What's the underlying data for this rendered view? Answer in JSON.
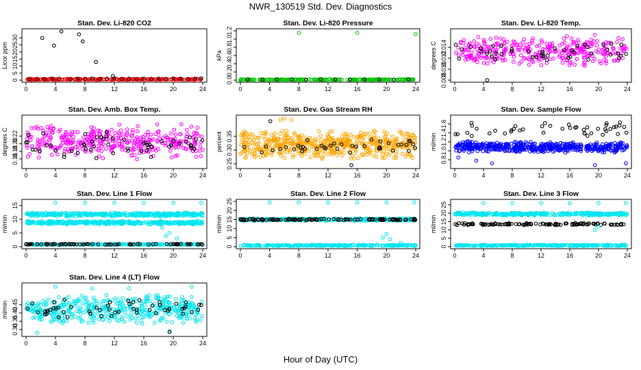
{
  "title": "NWR_130519  Std. Dev. Diagnostics",
  "xlabel": "Hour of Day (UTC)",
  "colors": {
    "black": "#000000",
    "red": "#ff0000",
    "green": "#00c800",
    "magenta": "#ff00ff",
    "orange": "#ffa500",
    "blue": "#0000ff",
    "cyan": "#00e5ee"
  },
  "chart_data": [
    {
      "type": "scatter",
      "title": "Stan. Dev. Li-820 CO2",
      "ylabel": "Licor ppm",
      "xlim": [
        0,
        24
      ],
      "ylim": [
        0,
        35
      ],
      "xticks": [
        "0",
        "4",
        "8",
        "12",
        "16",
        "20",
        "24"
      ],
      "yticks": [
        "0",
        "5",
        "10",
        "15",
        "20",
        "25",
        "30"
      ],
      "series": [
        {
          "color": "red",
          "mode": "band",
          "low": 0.2,
          "high": 1.0,
          "count": 220
        },
        {
          "color": "black",
          "points": [
            [
              0.5,
              0.8
            ],
            [
              1.5,
              0.9
            ],
            [
              2.5,
              0.8
            ],
            [
              3.5,
              1.0
            ],
            [
              4.5,
              0.9
            ],
            [
              6,
              0.8
            ],
            [
              7,
              1.0
            ],
            [
              8,
              0.9
            ],
            [
              9,
              1.1
            ],
            [
              10,
              0.9
            ],
            [
              11,
              1.0
            ],
            [
              12,
              1.2
            ],
            [
              13,
              0.9
            ],
            [
              14,
              1.0
            ],
            [
              15,
              0.8
            ],
            [
              16,
              1.1
            ],
            [
              17,
              0.9
            ],
            [
              18,
              1.0
            ],
            [
              19,
              0.9
            ],
            [
              20,
              1.2
            ],
            [
              21,
              1.0
            ],
            [
              22,
              0.9
            ],
            [
              23,
              1.1
            ],
            [
              23.8,
              1.3
            ],
            [
              2.2,
              30
            ],
            [
              3.8,
              24.5
            ],
            [
              4.8,
              34.5
            ],
            [
              7.2,
              32.5
            ],
            [
              7.7,
              27.5
            ],
            [
              9.5,
              13
            ],
            [
              11.8,
              3
            ]
          ]
        }
      ]
    },
    {
      "type": "scatter",
      "title": "Stan. Dev. Li-820 Pressure",
      "ylabel": "kPa",
      "xlim": [
        0,
        24
      ],
      "ylim": [
        0,
        1.2
      ],
      "xticks": [
        "0",
        "4",
        "8",
        "12",
        "16",
        "20",
        "24"
      ],
      "yticks": [
        "0.0",
        "0.2",
        "0.4",
        "0.6",
        "0.8",
        "1.0",
        "1.2"
      ],
      "series": [
        {
          "color": "green",
          "mode": "band",
          "low": 0.005,
          "high": 0.025,
          "count": 200
        },
        {
          "color": "black",
          "points": [
            [
              1,
              0.015
            ],
            [
              3,
              0.01
            ],
            [
              5,
              0.02
            ],
            [
              7,
              0.015
            ],
            [
              9,
              0.01
            ],
            [
              11,
              0.02
            ],
            [
              13,
              0.015
            ],
            [
              15,
              0.01
            ],
            [
              17,
              0.02
            ],
            [
              19,
              0.015
            ],
            [
              21,
              0.01
            ],
            [
              23,
              0.02
            ]
          ]
        },
        {
          "color": "green",
          "points": [
            [
              0,
              0.0
            ],
            [
              8,
              1.15
            ],
            [
              16,
              1.15
            ],
            [
              24,
              1.12
            ]
          ]
        }
      ]
    },
    {
      "type": "scatter",
      "title": "Stan. Dev. Li-820 Temp.",
      "ylabel": "degrees C",
      "xlim": [
        0,
        24
      ],
      "ylim": [
        0.008,
        0.017
      ],
      "xticks": [
        "0",
        "4",
        "8",
        "12",
        "16",
        "20",
        "24"
      ],
      "yticks": [
        "0.008",
        "0.010",
        "0.012",
        "0.014"
      ],
      "series": [
        {
          "color": "magenta",
          "mode": "band",
          "low": 0.0105,
          "high": 0.0165,
          "count": 330
        },
        {
          "color": "black",
          "mode": "band",
          "low": 0.011,
          "high": 0.0155,
          "count": 45
        },
        {
          "color": "black",
          "points": [
            [
              4.5,
              0.008
            ]
          ]
        }
      ]
    },
    {
      "type": "scatter",
      "title": "Stan. Dev. Amb. Box Temp.",
      "ylabel": "degrees C",
      "xlim": [
        0,
        24
      ],
      "ylim": [
        0.14,
        0.27
      ],
      "xticks": [
        "0",
        "4",
        "8",
        "12",
        "16",
        "20",
        "24"
      ],
      "yticks": [
        "0.16",
        "0.18",
        "0.20",
        "0.22"
      ],
      "series": [
        {
          "color": "magenta",
          "mode": "band",
          "low": 0.155,
          "high": 0.255,
          "count": 360
        },
        {
          "color": "black",
          "mode": "band",
          "low": 0.16,
          "high": 0.24,
          "count": 55
        }
      ]
    },
    {
      "type": "scatter",
      "title": "Stan. Dev. Gas Stream RH",
      "ylabel": "percent",
      "xlim": [
        0,
        24
      ],
      "ylim": [
        0.24,
        0.42
      ],
      "xticks": [
        "0",
        "4",
        "8",
        "12",
        "16",
        "20",
        "24"
      ],
      "yticks": [
        "0.25",
        "0.30",
        "0.35"
      ],
      "series": [
        {
          "color": "orange",
          "mode": "band",
          "low": 0.265,
          "high": 0.375,
          "count": 520
        },
        {
          "color": "black",
          "mode": "band",
          "low": 0.28,
          "high": 0.34,
          "count": 40
        },
        {
          "color": "orange",
          "points": [
            [
              5.5,
              0.41
            ],
            [
              6,
              0.415
            ],
            [
              7,
              0.41
            ]
          ]
        },
        {
          "color": "black",
          "points": [
            [
              4.1,
              0.405
            ],
            [
              15.2,
              0.245
            ]
          ]
        }
      ]
    },
    {
      "type": "scatter",
      "title": "Stan. Dev. Sample Flow",
      "ylabel": "ml/min",
      "xlim": [
        0,
        24
      ],
      "ylim": [
        0.65,
        1.75
      ],
      "xticks": [
        "0",
        "4",
        "8",
        "12",
        "16",
        "20",
        "24"
      ],
      "yticks": [
        "0.8",
        "1.0",
        "1.2",
        "1.4",
        "1.6"
      ],
      "series": [
        {
          "color": "blue",
          "mode": "band",
          "low": 0.95,
          "high": 1.22,
          "count": 460
        },
        {
          "color": "black",
          "mode": "band",
          "low": 1.28,
          "high": 1.68,
          "count": 45
        },
        {
          "color": "blue",
          "points": [
            [
              0.5,
              0.85
            ],
            [
              3,
              0.78
            ],
            [
              5.2,
              0.72
            ],
            [
              19.5,
              0.68
            ],
            [
              23.8,
              0.72
            ]
          ]
        }
      ]
    },
    {
      "type": "scatter",
      "title": "Stan. Dev. Line 1 Flow",
      "ylabel": "ml/min",
      "xlim": [
        0,
        24
      ],
      "ylim": [
        0,
        16.5
      ],
      "xticks": [
        "0",
        "4",
        "8",
        "12",
        "16",
        "20",
        "24"
      ],
      "yticks": [
        "0",
        "5",
        "10",
        "15"
      ],
      "series": [
        {
          "color": "cyan",
          "mode": "band",
          "low": 11,
          "high": 12.5,
          "count": 330
        },
        {
          "color": "cyan",
          "mode": "band",
          "low": 8,
          "high": 9.5,
          "count": 330
        },
        {
          "color": "cyan",
          "mode": "band",
          "low": 0.6,
          "high": 1.0,
          "count": 240
        },
        {
          "color": "black",
          "mode": "band",
          "low": 0.7,
          "high": 1.1,
          "count": 75
        },
        {
          "color": "cyan",
          "points": [
            [
              4,
              16
            ],
            [
              8,
              16
            ],
            [
              12,
              16
            ],
            [
              16,
              16
            ],
            [
              20,
              16
            ],
            [
              23.8,
              16
            ],
            [
              19,
              4
            ],
            [
              19.5,
              5
            ],
            [
              20.5,
              3
            ],
            [
              18.5,
              7
            ]
          ]
        }
      ]
    },
    {
      "type": "scatter",
      "title": "Stan. Dev. Line 2 Flow",
      "ylabel": "ml/min",
      "xlim": [
        0,
        24
      ],
      "ylim": [
        0,
        25
      ],
      "xticks": [
        "0",
        "4",
        "8",
        "12",
        "16",
        "20",
        "24"
      ],
      "yticks": [
        "0",
        "5",
        "10",
        "15",
        "20",
        "25"
      ],
      "series": [
        {
          "color": "cyan",
          "mode": "band",
          "low": 14.2,
          "high": 15.8,
          "count": 260
        },
        {
          "color": "black",
          "mode": "band",
          "low": 14.5,
          "high": 15.5,
          "count": 110
        },
        {
          "color": "cyan",
          "mode": "band",
          "low": 0.3,
          "high": 1.1,
          "count": 260
        },
        {
          "color": "cyan",
          "points": [
            [
              4,
              24.5
            ],
            [
              8,
              24.5
            ],
            [
              12,
              24.5
            ],
            [
              16,
              24.5
            ],
            [
              20,
              24.5
            ],
            [
              23.8,
              24.5
            ],
            [
              19.5,
              5
            ],
            [
              20,
              7
            ],
            [
              20.5,
              4
            ],
            [
              22,
              2
            ]
          ]
        }
      ]
    },
    {
      "type": "scatter",
      "title": "Stan. Dev. Line 3 Flow",
      "ylabel": "ml/min",
      "xlim": [
        0,
        24
      ],
      "ylim": [
        0,
        27
      ],
      "xticks": [
        "0",
        "4",
        "8",
        "12",
        "16",
        "20",
        "24"
      ],
      "yticks": [
        "0",
        "5",
        "10",
        "15",
        "20",
        "25"
      ],
      "series": [
        {
          "color": "cyan",
          "mode": "band",
          "low": 18.5,
          "high": 20.5,
          "count": 300
        },
        {
          "color": "black",
          "mode": "band",
          "low": 12.8,
          "high": 14.2,
          "count": 110
        },
        {
          "color": "cyan",
          "mode": "band",
          "low": 0.3,
          "high": 1.2,
          "count": 260
        },
        {
          "color": "cyan",
          "points": [
            [
              4,
              26
            ],
            [
              8,
              26
            ],
            [
              12,
              26
            ],
            [
              16,
              26
            ],
            [
              20,
              26
            ],
            [
              23.8,
              26
            ],
            [
              19.5,
              10
            ],
            [
              20,
              12
            ]
          ]
        }
      ]
    },
    {
      "type": "scatter",
      "title": "Stan. Dev. Line 4 (LT) Flow",
      "ylabel": "ml/min",
      "xlim": [
        0,
        24
      ],
      "ylim": [
        0.27,
        0.57
      ],
      "xticks": [
        "0",
        "4",
        "8",
        "12",
        "16",
        "20",
        "24"
      ],
      "yticks": [
        "0.30",
        "0.35",
        "0.40",
        "0.45"
      ],
      "series": [
        {
          "color": "cyan",
          "mode": "band",
          "low": 0.33,
          "high": 0.52,
          "count": 420
        },
        {
          "color": "black",
          "mode": "band",
          "low": 0.35,
          "high": 0.5,
          "count": 55
        },
        {
          "color": "cyan",
          "points": [
            [
              1.5,
              0.28
            ],
            [
              4,
              0.56
            ],
            [
              9,
              0.55
            ],
            [
              14,
              0.55
            ],
            [
              22.5,
              0.56
            ],
            [
              19.5,
              0.29
            ]
          ]
        },
        {
          "color": "black",
          "points": [
            [
              19.5,
              0.285
            ]
          ]
        }
      ]
    }
  ]
}
